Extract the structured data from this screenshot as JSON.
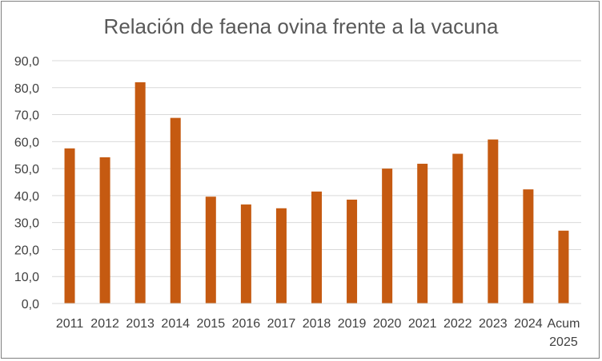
{
  "chart_data": {
    "type": "bar",
    "title": "Relación  de faena ovina frente a la vacuna",
    "xlabel": "",
    "ylabel": "",
    "categories": [
      "2011",
      "2012",
      "2013",
      "2014",
      "2015",
      "2016",
      "2017",
      "2018",
      "2019",
      "2020",
      "2021",
      "2022",
      "2023",
      "2024",
      "Acum 2025"
    ],
    "values": [
      57.5,
      54.2,
      82.0,
      68.8,
      39.6,
      36.7,
      35.3,
      41.5,
      38.5,
      50.0,
      51.8,
      55.5,
      60.8,
      42.3,
      27.0
    ],
    "ylim": [
      0,
      90
    ],
    "yticks": [
      "0,0",
      "10,0",
      "20,0",
      "30,0",
      "40,0",
      "50,0",
      "60,0",
      "70,0",
      "80,0",
      "90,0"
    ],
    "grid": true,
    "bar_color": "#c55a11",
    "grid_color": "#d9d9d9",
    "legend": "none"
  }
}
